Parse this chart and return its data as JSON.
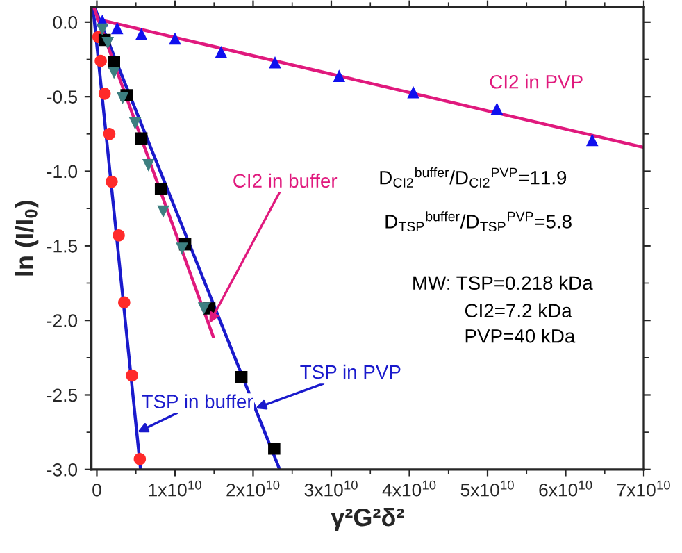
{
  "chart_data": {
    "type": "scatter",
    "xlabel": "γ²G²δ²",
    "ylabel": "ln (I/I$_{0}$)",
    "xlim": [
      -700000000,
      70000000000
    ],
    "ylim": [
      -3.0,
      0.1
    ],
    "xticks": [
      {
        "value": 0,
        "label": "0"
      },
      {
        "value": 10000000000,
        "label": "1x10$^{10}$"
      },
      {
        "value": 20000000000,
        "label": "2x10$^{10}$"
      },
      {
        "value": 30000000000,
        "label": "3x10$^{10}$"
      },
      {
        "value": 40000000000,
        "label": "4x10$^{10}$"
      },
      {
        "value": 50000000000,
        "label": "5x10$^{10}$"
      },
      {
        "value": 60000000000,
        "label": "6x10$^{10}$"
      },
      {
        "value": 70000000000,
        "label": "7x10$^{10}$"
      }
    ],
    "yticks": [
      {
        "value": 0,
        "label": "0.0"
      },
      -0.5,
      {
        "value": -1.0,
        "label": "-1.0"
      },
      -1.5,
      {
        "value": -2.0,
        "label": "-2.0"
      },
      -2.5,
      {
        "value": -3.0,
        "label": "-3.0"
      }
    ],
    "grid": false,
    "legend": false,
    "series": [
      {
        "marker": "triangle",
        "color": "#1010ee",
        "x": [
          700000000,
          2600000000,
          5700000000,
          10000000000,
          15900000000,
          22800000000,
          31000000000,
          40500000000,
          51200000000,
          63400000000
        ],
        "values": [
          0.01,
          -0.04,
          -0.08,
          -0.11,
          -0.2,
          -0.27,
          -0.36,
          -0.47,
          -0.58,
          -0.79
        ]
      },
      {
        "type": "line",
        "marker": "none",
        "line_style": "solid",
        "color": "#e0197d",
        "x": [
          0,
          70000000000
        ],
        "values": [
          0.02,
          -0.84
        ]
      },
      {
        "marker": "circle",
        "color": "#ff2a2a",
        "x": [
          200000000,
          500000000,
          1000000000,
          1600000000,
          1900000000,
          2800000000,
          3500000000,
          4500000000,
          5500000000
        ],
        "values": [
          -0.1,
          -0.26,
          -0.48,
          -0.75,
          -1.07,
          -1.43,
          -1.88,
          -2.37,
          -2.93
        ]
      },
      {
        "type": "line",
        "marker": "none",
        "line_style": "solid",
        "color": "#1a1acc",
        "x": [
          -500000000,
          5600000000
        ],
        "values": [
          0.1,
          -3.0
        ]
      },
      {
        "marker": "square",
        "color": "#000000",
        "x": [
          1000000000,
          2200000000,
          3800000000,
          5700000000,
          8200000000,
          11300000000,
          14400000000,
          18500000000,
          22700000000
        ],
        "values": [
          -0.12,
          -0.27,
          -0.49,
          -0.78,
          -1.12,
          -1.49,
          -1.92,
          -2.38,
          -2.86
        ]
      },
      {
        "type": "line",
        "marker": "none",
        "line_style": "solid",
        "color": "#1a1acc",
        "x": [
          -300000000,
          23400000000
        ],
        "values": [
          0.1,
          -3.0
        ]
      },
      {
        "marker": "triangle_down",
        "color": "#3d7f80",
        "x": [
          700000000,
          1400000000,
          2200000000,
          3300000000,
          4900000000,
          6600000000,
          8500000000,
          10900000000,
          13700000000
        ],
        "values": [
          -0.05,
          -0.14,
          -0.34,
          -0.51,
          -0.68,
          -0.96,
          -1.27,
          -1.52,
          -1.92
        ]
      },
      {
        "type": "line",
        "marker": "none",
        "line_style": "solid",
        "color": "#e0197d",
        "x": [
          -400000000,
          14900000000
        ],
        "values": [
          0.1,
          -2.11
        ]
      }
    ],
    "annotations": [
      "CI2 in PVP",
      {
        "text": "CI2 in buffer",
        "x": 14400000000,
        "y": -2.02
      },
      {
        "text": "TSP in PVP",
        "x": 20300000000,
        "y": -2.59
      },
      {
        "text": "TSP in buffer",
        "x": 5200000000,
        "y": -2.75
      },
      "D$_{CI2}$$^{buffer}$/D$_{CI2}$$^{PVP}$=11.9",
      "D$_{TSP}$$^{buffer}$/D$_{TSP}$$^{PVP}$=5.8",
      "MW: TSP=0.218 kDa",
      "CI2=7.2 kDa",
      "PVP=40 kDa"
    ]
  }
}
